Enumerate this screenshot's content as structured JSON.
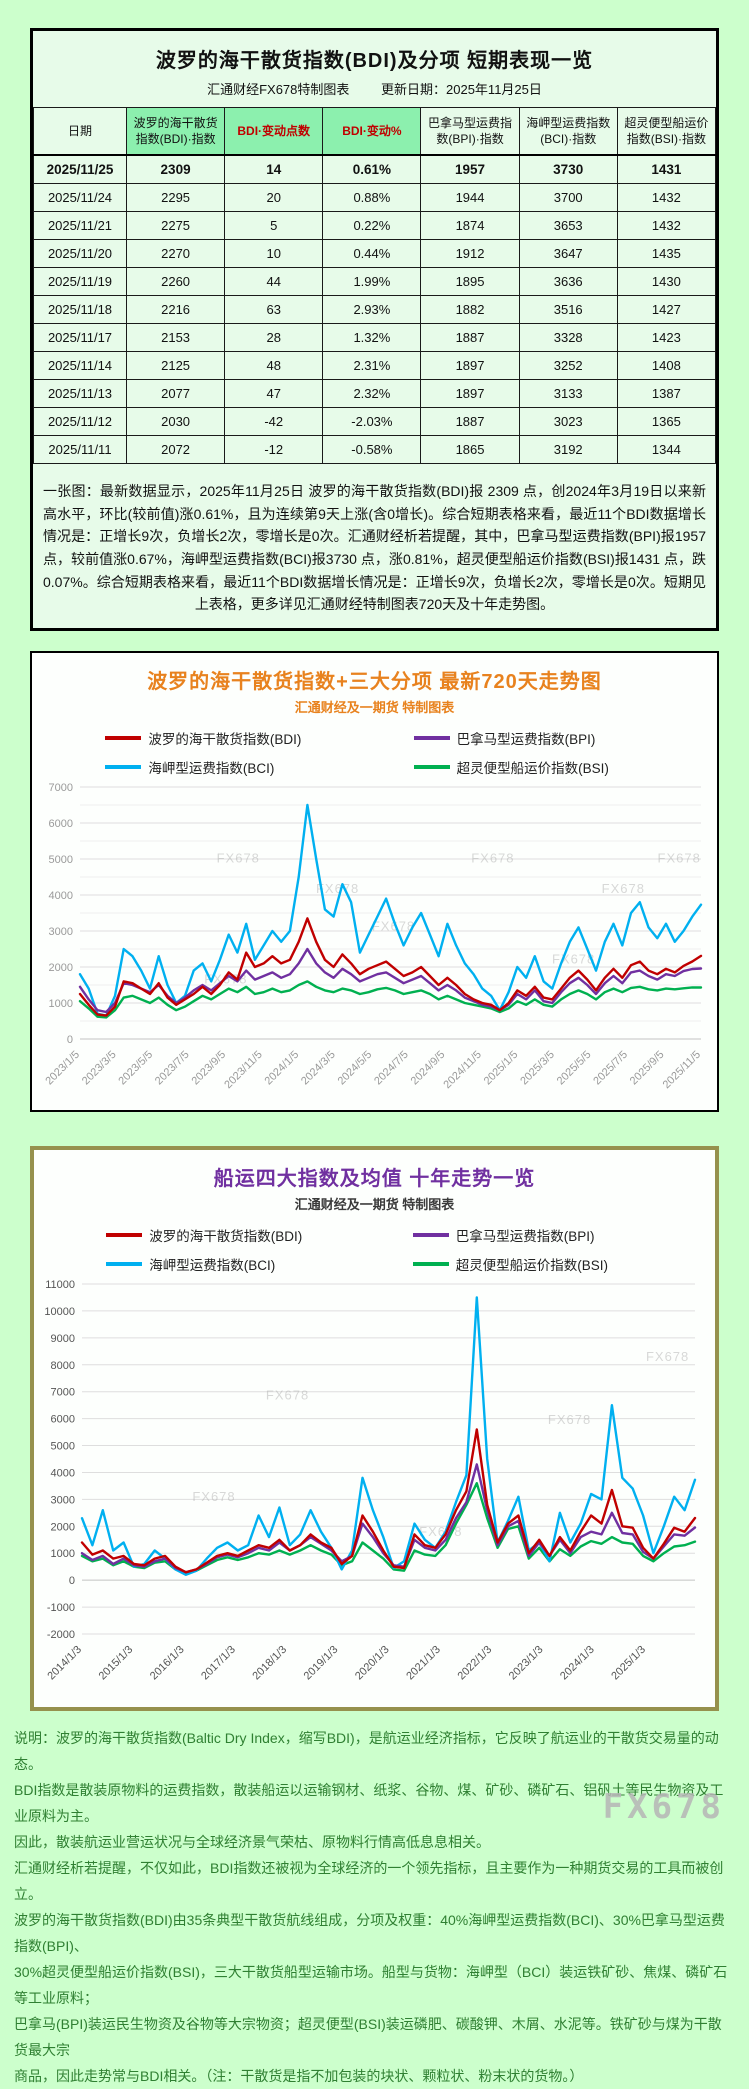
{
  "page": {
    "watermark": "FX678"
  },
  "colors": {
    "page_bg": "#ccffcc",
    "table_header_green": "#8cf0ae",
    "header_red_text": "#c00000",
    "chart1_accent": "#e8821e",
    "chart2_accent": "#7030a0",
    "chart2_border": "#96914d",
    "footer_green": "#2f8032",
    "series_bdi": "#c00000",
    "series_bpi": "#7030a0",
    "series_bci": "#00b0f0",
    "series_bsi": "#00b050"
  },
  "table_section": {
    "title": "波罗的海干散货指数(BDI)及分项  短期表现一览",
    "subtitle_source": "汇通财经FX678特制图表",
    "subtitle_update": "更新日期：2025年11月25日",
    "headers": [
      "日期",
      "波罗的海干散货指数(BDI)·指数",
      "BDI·变动点数",
      "BDI·变动%",
      "巴拿马型运费指数(BPI)·指数",
      "海岬型运费指数(BCI)·指数",
      "超灵便型船运价指数(BSI)·指数"
    ],
    "rows": [
      [
        "2025/11/25",
        "2309",
        "14",
        "0.61%",
        "1957",
        "3730",
        "1431"
      ],
      [
        "2025/11/24",
        "2295",
        "20",
        "0.88%",
        "1944",
        "3700",
        "1432"
      ],
      [
        "2025/11/21",
        "2275",
        "5",
        "0.22%",
        "1874",
        "3653",
        "1432"
      ],
      [
        "2025/11/20",
        "2270",
        "10",
        "0.44%",
        "1912",
        "3647",
        "1435"
      ],
      [
        "2025/11/19",
        "2260",
        "44",
        "1.99%",
        "1895",
        "3636",
        "1430"
      ],
      [
        "2025/11/18",
        "2216",
        "63",
        "2.93%",
        "1882",
        "3516",
        "1427"
      ],
      [
        "2025/11/17",
        "2153",
        "28",
        "1.32%",
        "1887",
        "3328",
        "1423"
      ],
      [
        "2025/11/14",
        "2125",
        "48",
        "2.31%",
        "1897",
        "3252",
        "1408"
      ],
      [
        "2025/11/13",
        "2077",
        "47",
        "2.32%",
        "1897",
        "3133",
        "1387"
      ],
      [
        "2025/11/12",
        "2030",
        "-42",
        "-2.03%",
        "1887",
        "3023",
        "1365"
      ],
      [
        "2025/11/11",
        "2072",
        "-12",
        "-0.58%",
        "1865",
        "3192",
        "1344"
      ]
    ],
    "note": "一张图：最新数据显示，2025年11月25日 波罗的海干散货指数(BDI)报 2309 点，创2024年3月19日以来新高水平，环比(较前值)涨0.61%，且为连续第9天上涨(含0增长)。综合短期表格来看，最近11个BDI数据增长情况是：正增长9次，负增长2次，零增长是0次。汇通财经析若提醒，其中，巴拿马型运费指数(BPI)报1957 点，较前值涨0.67%，海岬型运费指数(BCI)报3730 点，涨0.81%，超灵便型船运价指数(BSI)报1431 点，跌0.07%。综合短期表格来看，最近11个BDI数据增长情况是：正增长9次，负增长2次，零增长是0次。短期见上表格，更多详见汇通财经特制图表720天及十年走势图。"
  },
  "footer": {
    "lines": [
      "说明：波罗的海干散货指数(Baltic Dry Index，缩写BDI)，是航运业经济指标，它反映了航运业的干散货交易量的动态。",
      "BDI指数是散装原物料的运费指数，散装船运以运输钢材、纸浆、谷物、煤、矿砂、磷矿石、铝矾土等民生物资及工业原料为主。",
      "因此，散装航运业营运状况与全球经济景气荣枯、原物料行情高低息息相关。",
      "汇通财经析若提醒，不仅如此，BDI指数还被视为全球经济的一个领先指标，且主要作为一种期货交易的工具而被创立。",
      "波罗的海干散货指数(BDI)由35条典型干散货航线组成，分项及权重：40%海岬型运费指数(BCI)、30%巴拿马型运费指数(BPI)、",
      "30%超灵便型船运价指数(BSI)，三大干散货船型运输市场。船型与货物：海岬型（BCI）装运铁矿砂、焦煤、磷矿石等工业原料；",
      "巴拿马(BPI)装运民生物资及谷物等大宗物资；超灵便型(BSI)装运磷肥、碳酸钾、木屑、水泥等。铁矿砂与煤为干散货最大宗",
      "商品，因此走势常与BDI相关。（注：干散货是指不加包装的块状、颗粒状、粉末状的货物。）"
    ]
  },
  "chart_data": [
    {
      "type": "line",
      "name": "chart-720day",
      "title": "波罗的海干散货指数+三大分项  最新720天走势图",
      "subtitle": "汇通财经及一期货 特制图表",
      "ylim": [
        0,
        7000
      ],
      "ytick": 1000,
      "minor": true,
      "tick_color": "#9a9a9a",
      "grid": true,
      "legend_position": "top",
      "xlabel": "",
      "ylabel": "",
      "x_labels": [
        "2023/1/5",
        "2023/3/5",
        "2023/5/5",
        "2023/7/5",
        "2023/9/5",
        "2023/11/5",
        "2024/1/5",
        "2024/3/5",
        "2024/5/5",
        "2024/7/5",
        "2024/9/5",
        "2024/11/5",
        "2025/1/5",
        "2025/3/5",
        "2025/5/5",
        "2025/7/5",
        "2025/9/5",
        "2025/11/5"
      ],
      "x_label_span": 1,
      "watermarks": [
        [
          0.22,
          0.3
        ],
        [
          0.63,
          0.3
        ],
        [
          0.93,
          0.3
        ],
        [
          0.38,
          0.42
        ],
        [
          0.84,
          0.42
        ],
        [
          0.47,
          0.57
        ],
        [
          0.76,
          0.7
        ],
        [
          0.2,
          0.78
        ]
      ],
      "series": [
        {
          "id": "bdi",
          "name": "波罗的海干散货指数(BDI)",
          "color": "#c00000",
          "values": [
            1250,
            950,
            680,
            650,
            900,
            1600,
            1550,
            1400,
            1250,
            1550,
            1150,
            950,
            1100,
            1250,
            1450,
            1250,
            1500,
            1850,
            1650,
            2400,
            2000,
            2100,
            2300,
            2100,
            2200,
            2700,
            3350,
            2700,
            2200,
            2000,
            2350,
            2100,
            1800,
            1950,
            2050,
            2150,
            1950,
            1750,
            1850,
            2000,
            1750,
            1500,
            1700,
            1500,
            1250,
            1100,
            1000,
            950,
            800,
            1000,
            1350,
            1200,
            1450,
            1150,
            1100,
            1400,
            1700,
            1900,
            1650,
            1350,
            1700,
            1950,
            1700,
            2050,
            2150,
            1900,
            1800,
            1950,
            1850,
            2030,
            2153,
            2309
          ]
        },
        {
          "id": "bpi",
          "name": "巴拿马型运费指数(BPI)",
          "color": "#7030a0",
          "values": [
            1450,
            1100,
            800,
            750,
            1000,
            1550,
            1500,
            1400,
            1300,
            1500,
            1200,
            1000,
            1150,
            1350,
            1500,
            1350,
            1550,
            1750,
            1600,
            1900,
            1650,
            1750,
            1850,
            1700,
            1800,
            2100,
            2500,
            2100,
            1850,
            1700,
            1950,
            1800,
            1600,
            1700,
            1800,
            1850,
            1700,
            1550,
            1650,
            1750,
            1550,
            1350,
            1500,
            1350,
            1150,
            1050,
            950,
            900,
            800,
            950,
            1250,
            1100,
            1350,
            1050,
            1000,
            1300,
            1550,
            1700,
            1500,
            1250,
            1550,
            1750,
            1550,
            1850,
            1900,
            1750,
            1650,
            1800,
            1750,
            1887,
            1944,
            1957
          ]
        },
        {
          "id": "bci",
          "name": "海岬型运费指数(BCI)",
          "color": "#00b0f0",
          "values": [
            1800,
            1400,
            700,
            650,
            1200,
            2500,
            2300,
            1900,
            1400,
            2300,
            1500,
            1000,
            1200,
            1900,
            2100,
            1600,
            2200,
            2900,
            2400,
            3200,
            2200,
            2600,
            3000,
            2700,
            3000,
            4500,
            6500,
            5000,
            3600,
            3400,
            4300,
            3800,
            2400,
            2900,
            3400,
            3900,
            3200,
            2600,
            3100,
            3500,
            2900,
            2300,
            3200,
            2600,
            2100,
            1800,
            1400,
            1200,
            800,
            1300,
            2000,
            1700,
            2300,
            1600,
            1400,
            2100,
            2700,
            3100,
            2500,
            1900,
            2700,
            3200,
            2600,
            3500,
            3800,
            3100,
            2800,
            3200,
            2700,
            3000,
            3400,
            3730
          ]
        },
        {
          "id": "bsi",
          "name": "超灵便型船运价指数(BSI)",
          "color": "#00b050",
          "values": [
            1050,
            850,
            620,
            600,
            800,
            1150,
            1200,
            1100,
            1000,
            1150,
            950,
            800,
            900,
            1050,
            1200,
            1100,
            1250,
            1400,
            1300,
            1450,
            1250,
            1300,
            1400,
            1300,
            1350,
            1500,
            1600,
            1450,
            1350,
            1300,
            1400,
            1350,
            1250,
            1300,
            1380,
            1420,
            1350,
            1250,
            1300,
            1350,
            1250,
            1100,
            1200,
            1100,
            1000,
            950,
            900,
            850,
            750,
            850,
            1050,
            950,
            1100,
            950,
            900,
            1100,
            1250,
            1350,
            1250,
            1100,
            1300,
            1400,
            1300,
            1420,
            1450,
            1380,
            1350,
            1400,
            1380,
            1408,
            1432,
            1431
          ]
        }
      ]
    },
    {
      "type": "line",
      "name": "chart-10year",
      "title": "船运四大指数及均值 十年走势一览",
      "subtitle": "汇通财经及一期货 特制图表",
      "ylim": [
        -2000,
        11000
      ],
      "ytick": 1000,
      "minor": false,
      "tick_color": "#555555",
      "grid": true,
      "legend_position": "top",
      "xlabel": "",
      "ylabel": "",
      "x_labels": [
        "2014/1/3",
        "2015/1/3",
        "2016/1/3",
        "2017/1/3",
        "2018/1/3",
        "2019/1/3",
        "2020/1/3",
        "2021/1/3",
        "2022/1/3",
        "2023/1/3",
        "2024/1/3",
        "2025/1/3"
      ],
      "x_label_span": 0.92,
      "watermarks": [
        [
          0.3,
          0.33
        ],
        [
          0.76,
          0.4
        ],
        [
          0.18,
          0.62
        ],
        [
          0.55,
          0.72
        ],
        [
          0.92,
          0.22
        ]
      ],
      "series": [
        {
          "id": "bdi",
          "name": "波罗的海干散货指数(BDI)",
          "color": "#c00000",
          "values": [
            1400,
            950,
            1100,
            800,
            900,
            600,
            550,
            800,
            900,
            500,
            290,
            400,
            650,
            900,
            1000,
            900,
            1100,
            1300,
            1200,
            1500,
            1100,
            1300,
            1700,
            1400,
            1200,
            600,
            900,
            2400,
            1800,
            1100,
            500,
            450,
            1700,
            1300,
            1200,
            1700,
            2600,
            3300,
            5600,
            2800,
            1400,
            2100,
            2400,
            1000,
            1500,
            900,
            1600,
            1100,
            1800,
            2400,
            2100,
            3350,
            2000,
            1950,
            1200,
            800,
            1350,
            1950,
            1800,
            2309
          ]
        },
        {
          "id": "bpi",
          "name": "巴拿马型运费指数(BPI)",
          "color": "#7030a0",
          "values": [
            1000,
            750,
            900,
            600,
            800,
            550,
            500,
            700,
            800,
            450,
            300,
            400,
            600,
            850,
            950,
            850,
            1000,
            1200,
            1100,
            1400,
            1100,
            1300,
            1600,
            1350,
            1100,
            700,
            900,
            2100,
            1600,
            1000,
            550,
            500,
            1500,
            1200,
            1100,
            1500,
            2300,
            2900,
            4300,
            2600,
            1300,
            2000,
            2200,
            900,
            1400,
            900,
            1500,
            1000,
            1600,
            1800,
            1700,
            2500,
            1750,
            1700,
            1050,
            800,
            1250,
            1700,
            1650,
            1957
          ]
        },
        {
          "id": "bci",
          "name": "海岬型运费指数(BCI)",
          "color": "#00b0f0",
          "values": [
            2300,
            1300,
            2600,
            1100,
            1400,
            500,
            600,
            1100,
            800,
            400,
            200,
            350,
            800,
            1200,
            1400,
            1100,
            1300,
            2400,
            1600,
            2700,
            1300,
            1700,
            2600,
            1800,
            1200,
            400,
            1100,
            3800,
            2600,
            1600,
            450,
            700,
            2100,
            1500,
            1200,
            1800,
            2900,
            3900,
            10500,
            4500,
            1400,
            2200,
            3100,
            1100,
            1400,
            700,
            2500,
            1400,
            2100,
            3200,
            3000,
            6500,
            3800,
            3400,
            2400,
            1000,
            2000,
            3100,
            2600,
            3730
          ]
        },
        {
          "id": "bsi",
          "name": "超灵便型船运价指数(BSI)",
          "color": "#00b050",
          "values": [
            900,
            700,
            800,
            550,
            700,
            500,
            450,
            650,
            700,
            400,
            250,
            350,
            550,
            750,
            850,
            750,
            850,
            1000,
            950,
            1100,
            950,
            1100,
            1300,
            1100,
            950,
            550,
            700,
            1400,
            1100,
            800,
            400,
            350,
            1100,
            950,
            900,
            1300,
            2100,
            2800,
            3600,
            2300,
            1200,
            1900,
            2000,
            800,
            1200,
            700,
            1150,
            900,
            1250,
            1450,
            1350,
            1600,
            1400,
            1350,
            900,
            700,
            1000,
            1250,
            1300,
            1431
          ]
        }
      ]
    }
  ]
}
